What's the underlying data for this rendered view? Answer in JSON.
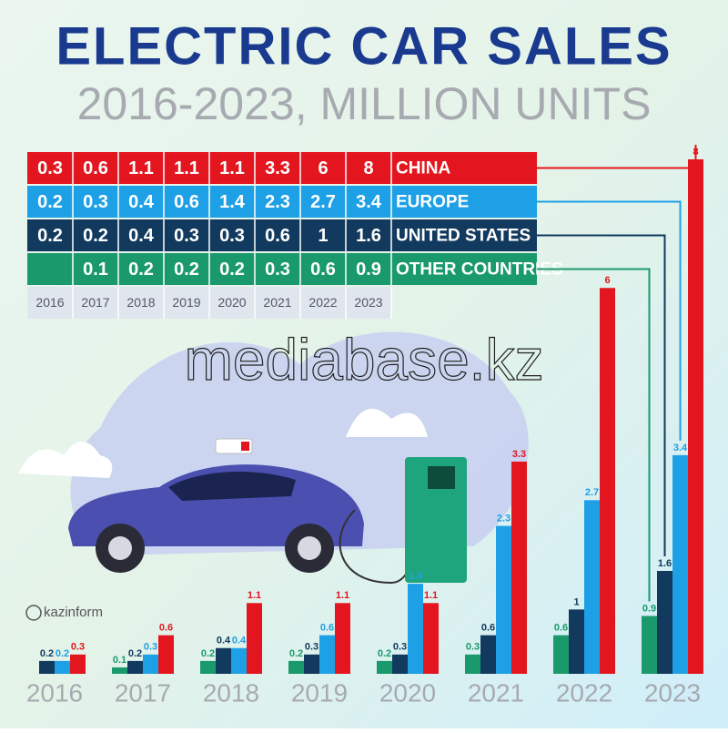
{
  "chart_data": {
    "type": "bar",
    "title": "ELECTRIC CAR SALES",
    "subtitle": "2016-2023, MILLION UNITS",
    "categories": [
      "2016",
      "2017",
      "2018",
      "2019",
      "2020",
      "2021",
      "2022",
      "2023"
    ],
    "series": [
      {
        "name": "CHINA",
        "color": "#e3161f",
        "values": [
          0.3,
          0.6,
          1.1,
          1.1,
          1.1,
          3.3,
          6,
          8
        ]
      },
      {
        "name": "EUROPE",
        "color": "#1ea0e6",
        "values": [
          0.2,
          0.3,
          0.4,
          0.6,
          1.4,
          2.3,
          2.7,
          3.4
        ]
      },
      {
        "name": "UNITED STATES",
        "color": "#123a5e",
        "values": [
          0.2,
          0.2,
          0.4,
          0.3,
          0.3,
          0.6,
          1,
          1.6
        ]
      },
      {
        "name": "OTHER COUNTRIES",
        "color": "#1a9a6c",
        "values": [
          null,
          0.1,
          0.2,
          0.2,
          0.2,
          0.3,
          0.6,
          0.9
        ]
      }
    ]
  },
  "watermark": "mediabase.kz",
  "source": "kazinform"
}
